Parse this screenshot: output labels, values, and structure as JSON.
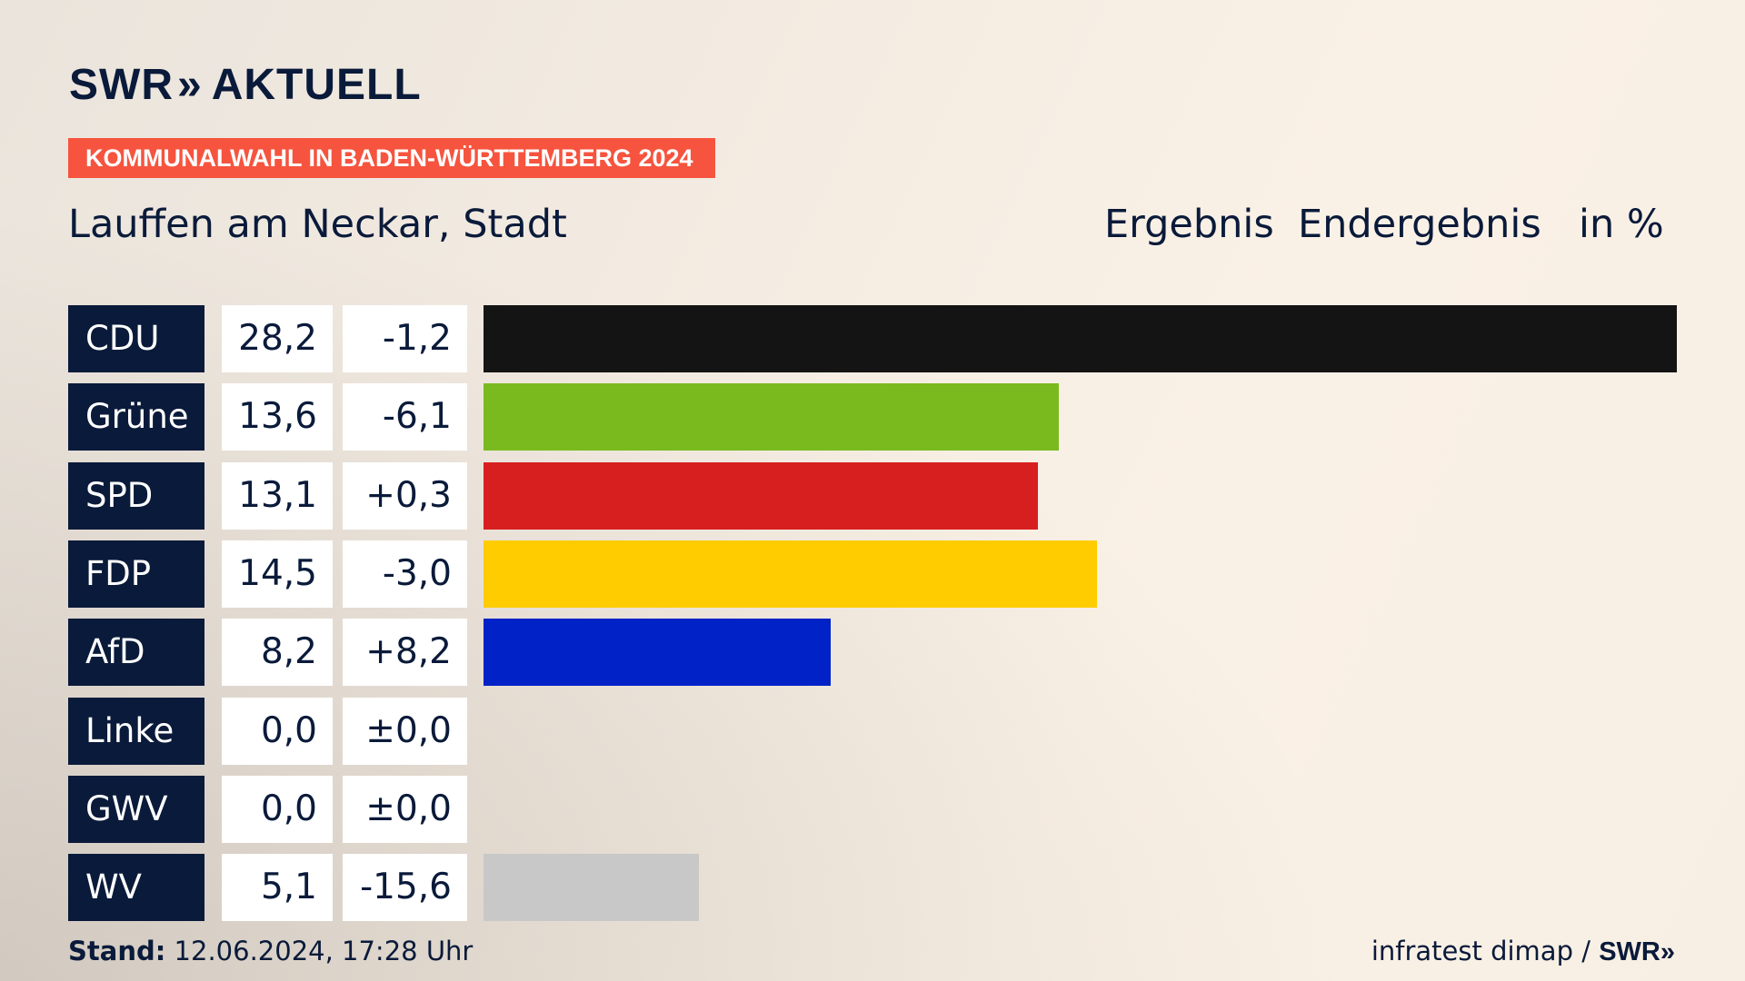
{
  "brand": {
    "name": "SWR",
    "arrows": "»",
    "section": "AKTUELL"
  },
  "banner": "KOMMUNALWAHL IN BADEN-WÜRTTEMBERG 2024",
  "place": "Lauffen am Neckar, Stadt",
  "header": {
    "ergebnis": "Ergebnis",
    "status": "Endergebnis",
    "unit": "in %"
  },
  "chart_data": {
    "type": "bar",
    "orientation": "horizontal",
    "categories": [
      "CDU",
      "Grüne",
      "SPD",
      "FDP",
      "AfD",
      "Linke",
      "GWV",
      "WV"
    ],
    "values": [
      28.2,
      13.6,
      13.1,
      14.5,
      8.2,
      0.0,
      0.0,
      5.1
    ],
    "value_labels": [
      "28,2",
      "13,6",
      "13,1",
      "14,5",
      "8,2",
      "0,0",
      "0,0",
      "5,1"
    ],
    "diff_labels": [
      "-1,2",
      "-6,1",
      "+0,3",
      "-3,0",
      "+8,2",
      "±0,0",
      "±0,0",
      "-15,6"
    ],
    "diffs": [
      -1.2,
      -6.1,
      0.3,
      -3.0,
      8.2,
      0.0,
      0.0,
      -15.6
    ],
    "colors": [
      "#141414",
      "#7aba1e",
      "#d81f1f",
      "#ffcc00",
      "#0022c7",
      "#b1003a",
      "#6d6d6d",
      "#c8c8c8"
    ],
    "xlim": [
      0,
      28.2
    ]
  },
  "footer": {
    "stand_label": "Stand:",
    "stand_value": "12.06.2024, 17:28 Uhr",
    "source": "infratest dimap /",
    "source_brand": "SWR",
    "source_arrows": "»"
  }
}
